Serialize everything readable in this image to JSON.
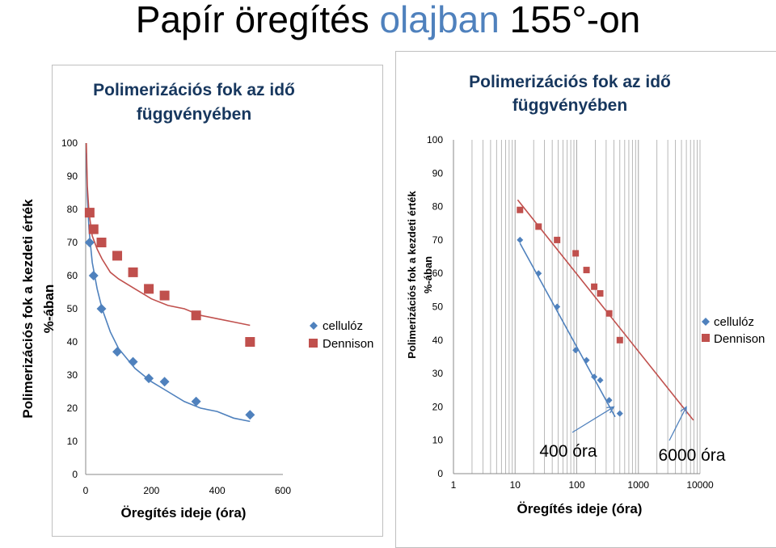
{
  "page": {
    "title_pre": "Papír öregítés ",
    "title_highlight": "olajban",
    "title_post": " 155°-on",
    "highlight_color": "#4F81BD"
  },
  "chart_data": [
    {
      "type": "scatter",
      "title": "Polimerizációs fok az idő függvényében",
      "title_lines": [
        "Polimerizációs fok az idő",
        "függvényében"
      ],
      "xlabel": "Öregítés ideje (óra)",
      "ylabel_lines": [
        "Polimerizációs fok a kezdeti érték",
        "%-ában"
      ],
      "xlim": [
        0,
        600
      ],
      "ylim": [
        0,
        100
      ],
      "x_scale": "linear",
      "xticks": [
        0,
        200,
        400,
        600
      ],
      "yticks": [
        0,
        10,
        20,
        30,
        40,
        50,
        60,
        70,
        80,
        90,
        100
      ],
      "legend_position": "right",
      "series": [
        {
          "name": "cellulóz",
          "marker": "diamond",
          "color": "#4F81BD",
          "x": [
            12,
            24,
            48,
            96,
            144,
            192,
            240,
            336,
            500
          ],
          "y": [
            70,
            60,
            50,
            37,
            34,
            29,
            28,
            22,
            18
          ]
        },
        {
          "name": "Dennison",
          "marker": "square",
          "color": "#C0504D",
          "x": [
            12,
            24,
            48,
            96,
            144,
            192,
            240,
            336,
            500
          ],
          "y": [
            79,
            74,
            70,
            66,
            61,
            56,
            54,
            48,
            40
          ]
        }
      ],
      "trendlines": [
        {
          "series": "cellulóz",
          "color": "#4F81BD",
          "x": [
            2,
            5,
            10,
            20,
            35,
            50,
            75,
            100,
            150,
            200,
            250,
            300,
            350,
            400,
            450,
            500
          ],
          "y": [
            97,
            84,
            74,
            64,
            56,
            50,
            43,
            38,
            32,
            28,
            25,
            22,
            20,
            19,
            17,
            16
          ]
        },
        {
          "series": "Dennison",
          "color": "#C0504D",
          "x": [
            2,
            5,
            10,
            20,
            35,
            50,
            75,
            100,
            150,
            200,
            250,
            300,
            350,
            400,
            450,
            500
          ],
          "y": [
            100,
            87,
            79,
            72,
            68,
            65,
            61,
            59,
            56,
            53,
            51,
            50,
            48,
            47,
            46,
            45
          ]
        }
      ]
    },
    {
      "type": "scatter",
      "title": "Polimerizációs fok az idő függvényében",
      "title_lines": [
        "Polimerizációs fok az idő",
        "függvényében"
      ],
      "xlabel": "Öregítés ideje (óra)",
      "ylabel_lines": [
        "Polimerizációs fok a kezdeti érték",
        "%-ában"
      ],
      "xlim": [
        1,
        10000
      ],
      "ylim": [
        0,
        100
      ],
      "x_scale": "log",
      "xticks": [
        1,
        10,
        100,
        1000,
        10000
      ],
      "yticks": [
        0,
        10,
        20,
        30,
        40,
        50,
        60,
        70,
        80,
        90,
        100
      ],
      "legend_position": "right",
      "series": [
        {
          "name": "cellulóz",
          "marker": "diamond",
          "color": "#4F81BD",
          "x": [
            12,
            24,
            48,
            96,
            144,
            192,
            240,
            336,
            500
          ],
          "y": [
            70,
            60,
            50,
            37,
            34,
            29,
            28,
            22,
            18
          ]
        },
        {
          "name": "Dennison",
          "marker": "square",
          "color": "#C0504D",
          "x": [
            12,
            24,
            48,
            96,
            144,
            192,
            240,
            336,
            500
          ],
          "y": [
            79,
            74,
            70,
            66,
            61,
            56,
            54,
            48,
            40
          ]
        }
      ],
      "trendlines": [
        {
          "series": "cellulóz",
          "color": "#4F81BD",
          "x": [
            12,
            420
          ],
          "y": [
            69,
            17
          ]
        },
        {
          "series": "Dennison",
          "color": "#C0504D",
          "x": [
            11,
            7800
          ],
          "y": [
            82,
            16
          ]
        }
      ],
      "annotations": [
        {
          "text": "400 óra",
          "arrow_to": [
            400,
            20
          ]
        },
        {
          "text": "6000 óra",
          "arrow_to": [
            6000,
            20
          ]
        }
      ]
    }
  ]
}
